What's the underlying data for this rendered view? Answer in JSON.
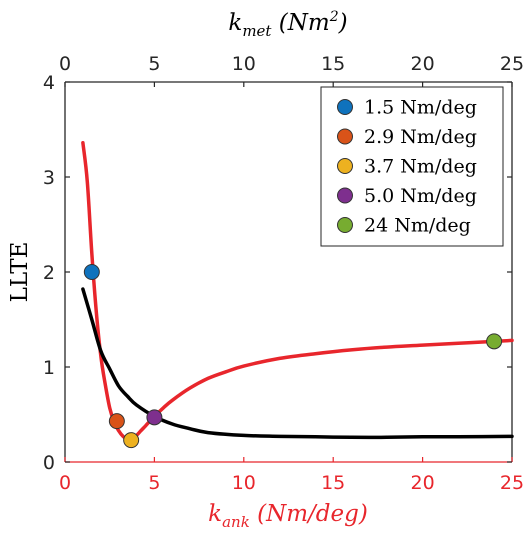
{
  "chart_data": {
    "type": "line",
    "xlabel": {
      "prefix": "k",
      "sub": "ank",
      "unit": " (Nm/deg)"
    },
    "x2label": {
      "prefix": "k",
      "sub": "met",
      "unit_base": " (Nm",
      "unit_exp": "2",
      "unit_close": ")"
    },
    "ylabel": "LLTE",
    "xlim": [
      0,
      25
    ],
    "x2lim": [
      0,
      25
    ],
    "ylim": [
      0,
      4
    ],
    "xticks": [
      "0",
      "5",
      "10",
      "15",
      "20",
      "25"
    ],
    "x2ticks": [
      "0",
      "5",
      "10",
      "15",
      "20",
      "25"
    ],
    "yticks": [
      "0",
      "1",
      "2",
      "3",
      "4"
    ],
    "grid": false,
    "legend_position": "top-right",
    "colors": {
      "red": "#e8262c",
      "black": "#000000",
      "axis_red": "#e8262c"
    },
    "series": [
      {
        "color": "#e8262c",
        "x_axis": "bottom",
        "x": [
          1.0,
          1.25,
          1.5,
          1.75,
          2.0,
          2.25,
          2.5,
          2.75,
          3.0,
          3.25,
          3.5,
          3.75,
          4.0,
          4.25,
          4.5,
          5.0,
          5.5,
          6.0,
          7.0,
          8.0,
          9.0,
          10.0,
          12.0,
          14.0,
          16.0,
          18.0,
          20.0,
          22.0,
          24.0,
          25.0
        ],
        "y": [
          3.36,
          2.95,
          2.2,
          1.58,
          1.12,
          0.82,
          0.57,
          0.42,
          0.33,
          0.27,
          0.24,
          0.25,
          0.28,
          0.33,
          0.38,
          0.48,
          0.57,
          0.65,
          0.78,
          0.88,
          0.95,
          1.01,
          1.09,
          1.14,
          1.18,
          1.21,
          1.23,
          1.25,
          1.27,
          1.28
        ]
      },
      {
        "color": "#000000",
        "x_axis": "top",
        "x": [
          1.0,
          1.5,
          2.0,
          2.5,
          3.0,
          3.5,
          4.0,
          5.0,
          6.0,
          7.0,
          8.0,
          10.0,
          12.0,
          14.0,
          16.0,
          18.0,
          20.0,
          22.0,
          25.0
        ],
        "y": [
          1.82,
          1.5,
          1.17,
          0.98,
          0.8,
          0.69,
          0.6,
          0.48,
          0.4,
          0.35,
          0.31,
          0.28,
          0.27,
          0.265,
          0.26,
          0.26,
          0.265,
          0.265,
          0.27
        ]
      }
    ],
    "points": [
      {
        "label": "1.5 Nm/deg",
        "x": 1.5,
        "y": 2.0,
        "color": "#0f72bd"
      },
      {
        "label": "2.9 Nm/deg",
        "x": 2.9,
        "y": 0.43,
        "color": "#d95319"
      },
      {
        "label": "3.7 Nm/deg",
        "x": 3.7,
        "y": 0.23,
        "color": "#edb120"
      },
      {
        "label": "5.0 Nm/deg",
        "x": 5.0,
        "y": 0.47,
        "color": "#7e2f8e"
      },
      {
        "label": "24 Nm/deg",
        "x": 24.0,
        "y": 1.27,
        "color": "#77ac30"
      }
    ]
  }
}
